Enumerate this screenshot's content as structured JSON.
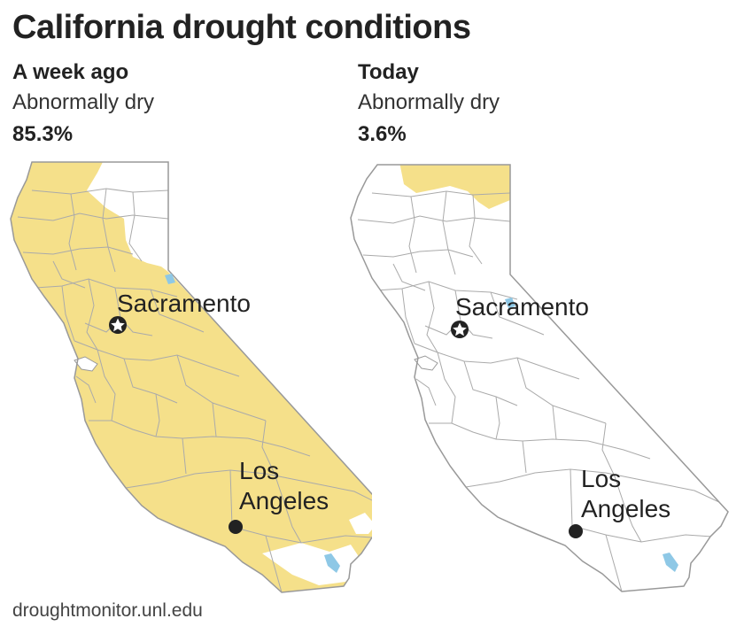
{
  "title": "California drought conditions",
  "panels": [
    {
      "heading": "A week ago",
      "category": "Abnormally dry",
      "percent": "85.3%"
    },
    {
      "heading": "Today",
      "category": "Abnormally dry",
      "percent": "3.6%"
    }
  ],
  "cities": {
    "capital": "Sacramento",
    "la_line1": "Los",
    "la_line2": "Angeles"
  },
  "source": "droughtmonitor.unl.edu",
  "colors": {
    "abnormally_dry": "#f5e08a",
    "water": "#8ec8e6",
    "county_line": "#aaaaaa",
    "state_outline": "#999999"
  }
}
